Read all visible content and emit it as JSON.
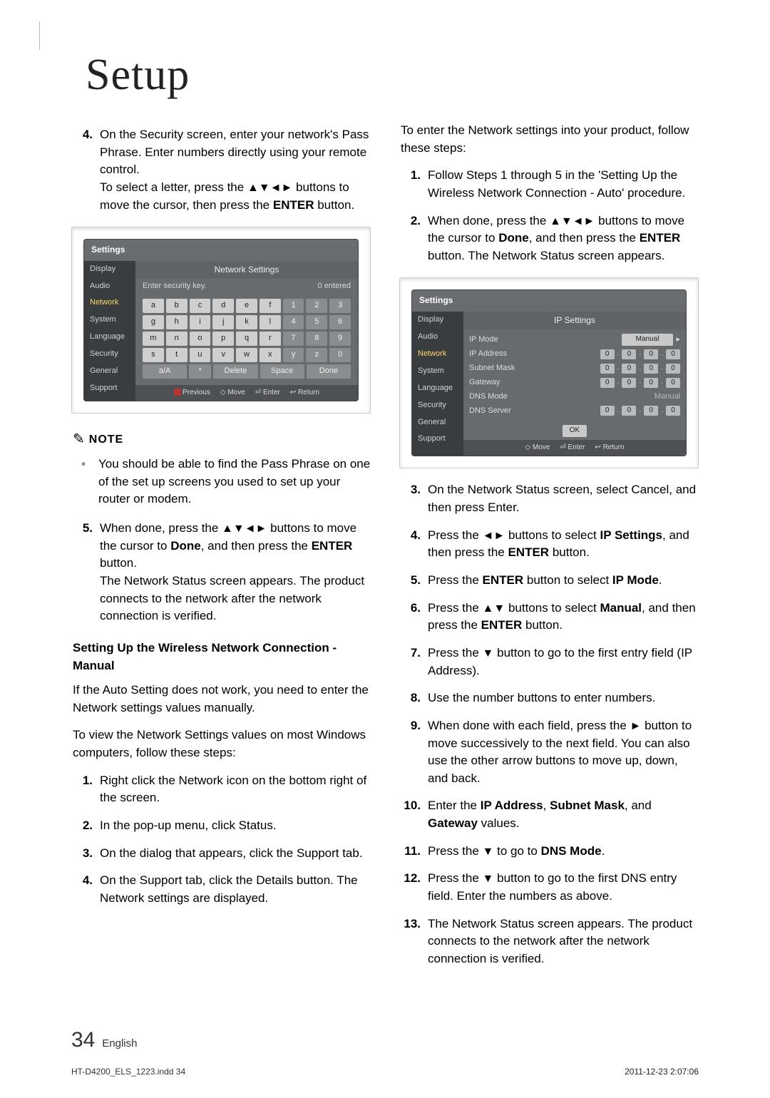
{
  "page": {
    "title": "Setup",
    "number": "34",
    "lang": "English",
    "indd": "HT-D4200_ELS_1223.indd   34",
    "timestamp": "2011-12-23   2:07:06"
  },
  "left": {
    "li4_a": "On the Security screen, enter your network's Pass Phrase. Enter numbers directly using your remote control.",
    "li4_b_pre": "To select a letter, press the ",
    "li4_b_arrows": "▲▼◄►",
    "li4_b_mid": " buttons to move the cursor, then press the ",
    "li4_b_enter": "ENTER",
    "li4_b_post": " button.",
    "note_label": "NOTE",
    "note_body": "You should be able to find the Pass Phrase on one of the set up screens you used to set up your router or modem.",
    "li5_a_pre": "When done, press the ",
    "li5_a_arrows": "▲▼◄►",
    "li5_a_mid": " buttons to move the cursor to ",
    "li5_a_done": "Done",
    "li5_a_mid2": ", and then press the ",
    "li5_a_enter": "ENTER",
    "li5_a_post": " button.",
    "li5_b": "The Network Status screen appears. The product connects to the network after the network connection is verified.",
    "subhead": "Setting Up the Wireless Network Connection - Manual",
    "p_auto": "If the Auto Setting does not work, you need to enter the Network settings values manually.",
    "p_view": "To view the Network Settings values on most Windows computers, follow these steps:",
    "wli1": "Right click the Network icon on the bottom right of the screen.",
    "wli2": "In the pop-up menu, click Status.",
    "wli3": "On the dialog that appears, click the Support tab.",
    "wli4": "On the Support tab, click the Details button. The Network settings are displayed."
  },
  "right": {
    "intro": "To enter the Network settings into your product, follow these steps:",
    "li1": "Follow Steps 1 through 5 in the 'Setting Up the Wireless Network Connection - Auto' procedure.",
    "li2_pre": "When done, press the ",
    "li2_arrows": "▲▼◄►",
    "li2_mid": " buttons to move the cursor to ",
    "li2_done": "Done",
    "li2_mid2": ", and then press the ",
    "li2_enter": "ENTER",
    "li2_post": " button. The Network Status screen appears.",
    "li3": "On the Network Status screen, select Cancel, and then press Enter.",
    "li4_pre": "Press the ",
    "li4_arrows": "◄►",
    "li4_mid": " buttons to select ",
    "li4_ip": "IP Settings",
    "li4_mid2": ", and then press the ",
    "li4_enter": "ENTER",
    "li4_post": " button.",
    "li5_pre": "Press the ",
    "li5_enter": "ENTER",
    "li5_mid": " button to select ",
    "li5_ipm": "IP Mode",
    "li5_post": ".",
    "li6_pre": "Press the ",
    "li6_arrows": "▲▼",
    "li6_mid": " buttons to select ",
    "li6_man": "Manual",
    "li6_mid2": ", and then press the ",
    "li6_enter": "ENTER",
    "li6_post": " button.",
    "li7_pre": "Press the ",
    "li7_arrow": "▼",
    "li7_post": " button to go to the first entry field (IP Address).",
    "li8": "Use the number buttons to enter numbers.",
    "li9_pre": "When done with each field, press the ",
    "li9_arrow": "►",
    "li9_post": " button to move successively to the next field. You can also use the other arrow buttons to move up, down, and back.",
    "li10_pre": "Enter the ",
    "li10_a": "IP Address",
    "li10_sep1": ", ",
    "li10_b": "Subnet Mask",
    "li10_sep2": ", and ",
    "li10_c": "Gateway",
    "li10_post": " values.",
    "li11_pre": "Press the ",
    "li11_arrow": "▼",
    "li11_mid": " to go to ",
    "li11_dns": "DNS Mode",
    "li11_post": ".",
    "li12_pre": "Press the ",
    "li12_arrow": "▼",
    "li12_post": " button to go to the first DNS entry field. Enter the numbers as above.",
    "li13": "The Network Status screen appears. The product connects to the network after the network connection is verified."
  },
  "osd1": {
    "title": "Settings",
    "panel_header": "Network Settings",
    "prompt": "Enter security key.",
    "entered": "0 entered",
    "sidebar": [
      "Display",
      "Audio",
      "Network",
      "System",
      "Language",
      "Security",
      "General",
      "Support"
    ],
    "rows": [
      [
        "a",
        "b",
        "c",
        "d",
        "e",
        "f",
        "1",
        "2",
        "3"
      ],
      [
        "g",
        "h",
        "i",
        "j",
        "k",
        "l",
        "4",
        "5",
        "6"
      ],
      [
        "m",
        "n",
        "o",
        "p",
        "q",
        "r",
        "7",
        "8",
        "9"
      ],
      [
        "s",
        "t",
        "u",
        "v",
        "w",
        "x",
        "y",
        "z",
        "0"
      ]
    ],
    "fn": {
      "aA": "a/A",
      "star": "*",
      "del": "Delete",
      "space": "Space",
      "done": "Done"
    },
    "foot": {
      "prev": "Previous",
      "move": "Move",
      "enter": "Enter",
      "ret": "Return"
    }
  },
  "osd2": {
    "title": "Settings",
    "panel_header": "IP Settings",
    "sidebar": [
      "Display",
      "Audio",
      "Network",
      "System",
      "Language",
      "Security",
      "General",
      "Support"
    ],
    "rows": [
      {
        "lbl": "IP Mode",
        "val": "Manual",
        "type": "sel"
      },
      {
        "lbl": "IP Address",
        "type": "ip"
      },
      {
        "lbl": "Subnet Mask",
        "type": "ip"
      },
      {
        "lbl": "Gateway",
        "type": "ip"
      },
      {
        "lbl": "DNS Mode",
        "val": "Manual",
        "type": "txt"
      },
      {
        "lbl": "DNS Server",
        "type": "ip"
      }
    ],
    "ok": "OK",
    "foot": {
      "move": "Move",
      "enter": "Enter",
      "ret": "Return"
    },
    "octet": "0"
  }
}
